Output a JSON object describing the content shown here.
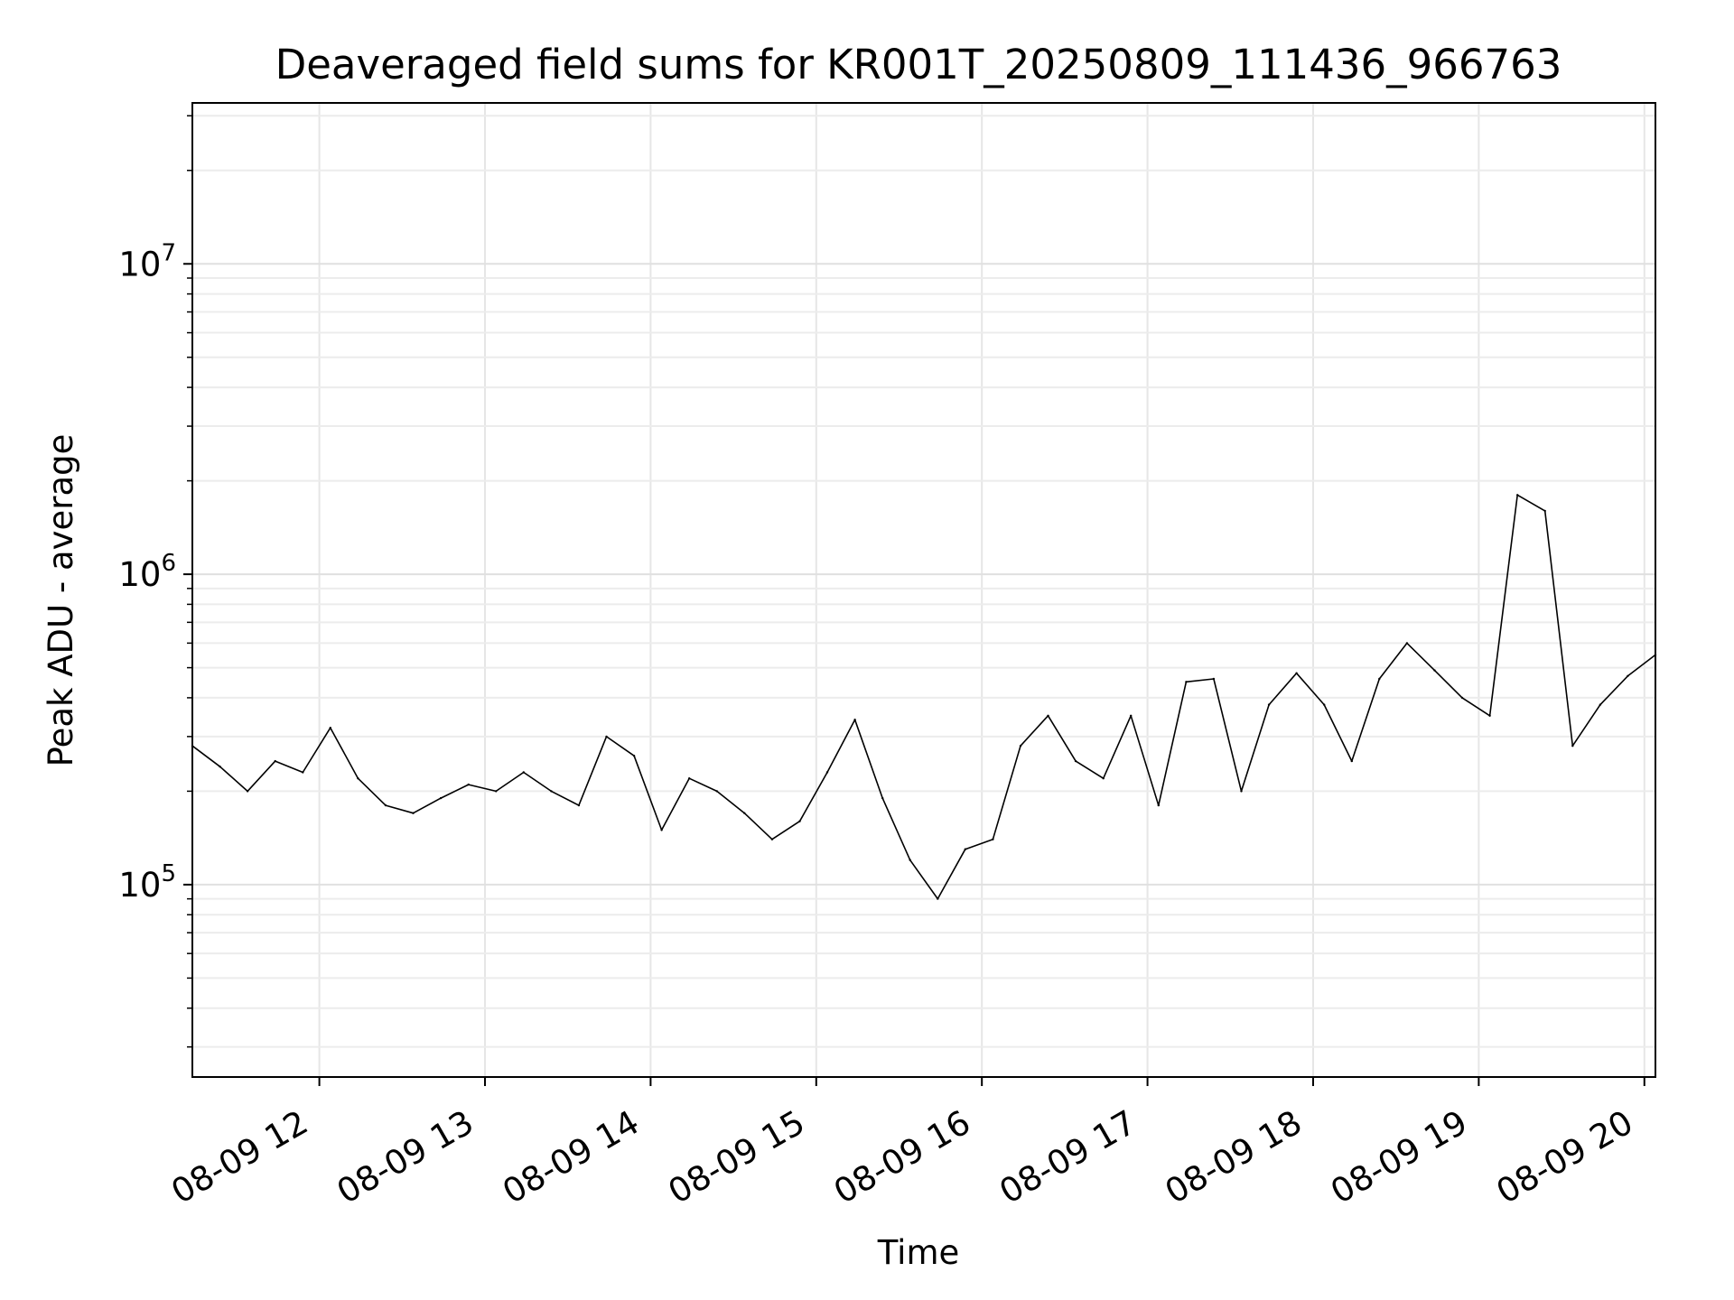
{
  "chart_data": {
    "type": "line",
    "title": "Deaveraged field sums for KR001T_20250809_111436_966763",
    "xlabel": "Time",
    "ylabel": "Peak ADU - average",
    "yscale": "log",
    "grid": true,
    "xlim": [
      "2025-08-09 11:14",
      "2025-08-09 20:04"
    ],
    "ylim": [
      24000,
      33000000
    ],
    "x_ticks": [
      {
        "value": "2025-08-09 12:00",
        "label": "08-09 12"
      },
      {
        "value": "2025-08-09 13:00",
        "label": "08-09 13"
      },
      {
        "value": "2025-08-09 14:00",
        "label": "08-09 14"
      },
      {
        "value": "2025-08-09 15:00",
        "label": "08-09 15"
      },
      {
        "value": "2025-08-09 16:00",
        "label": "08-09 16"
      },
      {
        "value": "2025-08-09 17:00",
        "label": "08-09 17"
      },
      {
        "value": "2025-08-09 18:00",
        "label": "08-09 18"
      },
      {
        "value": "2025-08-09 19:00",
        "label": "08-09 19"
      },
      {
        "value": "2025-08-09 20:00",
        "label": "08-09 20"
      }
    ],
    "y_ticks": [
      {
        "value": 100000,
        "base": "10",
        "exp": "5"
      },
      {
        "value": 1000000,
        "base": "10",
        "exp": "6"
      },
      {
        "value": 10000000,
        "base": "10",
        "exp": "7"
      }
    ],
    "series": [
      {
        "color": "#000000",
        "x": [
          "2025-08-09 11:14",
          "2025-08-09 11:24",
          "2025-08-09 11:34",
          "2025-08-09 11:44",
          "2025-08-09 11:54",
          "2025-08-09 12:04",
          "2025-08-09 12:14",
          "2025-08-09 12:24",
          "2025-08-09 12:34",
          "2025-08-09 12:44",
          "2025-08-09 12:54",
          "2025-08-09 13:04",
          "2025-08-09 13:14",
          "2025-08-09 13:24",
          "2025-08-09 13:34",
          "2025-08-09 13:44",
          "2025-08-09 13:54",
          "2025-08-09 14:04",
          "2025-08-09 14:14",
          "2025-08-09 14:24",
          "2025-08-09 14:34",
          "2025-08-09 14:44",
          "2025-08-09 14:54",
          "2025-08-09 15:04",
          "2025-08-09 15:14",
          "2025-08-09 15:24",
          "2025-08-09 15:34",
          "2025-08-09 15:44",
          "2025-08-09 15:54",
          "2025-08-09 16:04",
          "2025-08-09 16:14",
          "2025-08-09 16:24",
          "2025-08-09 16:34",
          "2025-08-09 16:44",
          "2025-08-09 16:54",
          "2025-08-09 17:04",
          "2025-08-09 17:14",
          "2025-08-09 17:24",
          "2025-08-09 17:34",
          "2025-08-09 17:44",
          "2025-08-09 17:54",
          "2025-08-09 18:04",
          "2025-08-09 18:14",
          "2025-08-09 18:24",
          "2025-08-09 18:34",
          "2025-08-09 18:44",
          "2025-08-09 18:54",
          "2025-08-09 19:04",
          "2025-08-09 19:14",
          "2025-08-09 19:24",
          "2025-08-09 19:34",
          "2025-08-09 19:44",
          "2025-08-09 19:54",
          "2025-08-09 20:04"
        ],
        "y": [
          280000,
          240000,
          200000,
          250000,
          230000,
          320000,
          220000,
          180000,
          170000,
          190000,
          210000,
          200000,
          230000,
          200000,
          180000,
          300000,
          260000,
          150000,
          220000,
          200000,
          170000,
          140000,
          160000,
          230000,
          340000,
          190000,
          120000,
          90000,
          130000,
          140000,
          280000,
          350000,
          250000,
          220000,
          350000,
          180000,
          450000,
          460000,
          200000,
          380000,
          480000,
          380000,
          250000,
          460000,
          600000,
          490000,
          400000,
          350000,
          1800000,
          1600000,
          280000,
          380000,
          470000,
          550000
        ]
      }
    ]
  }
}
